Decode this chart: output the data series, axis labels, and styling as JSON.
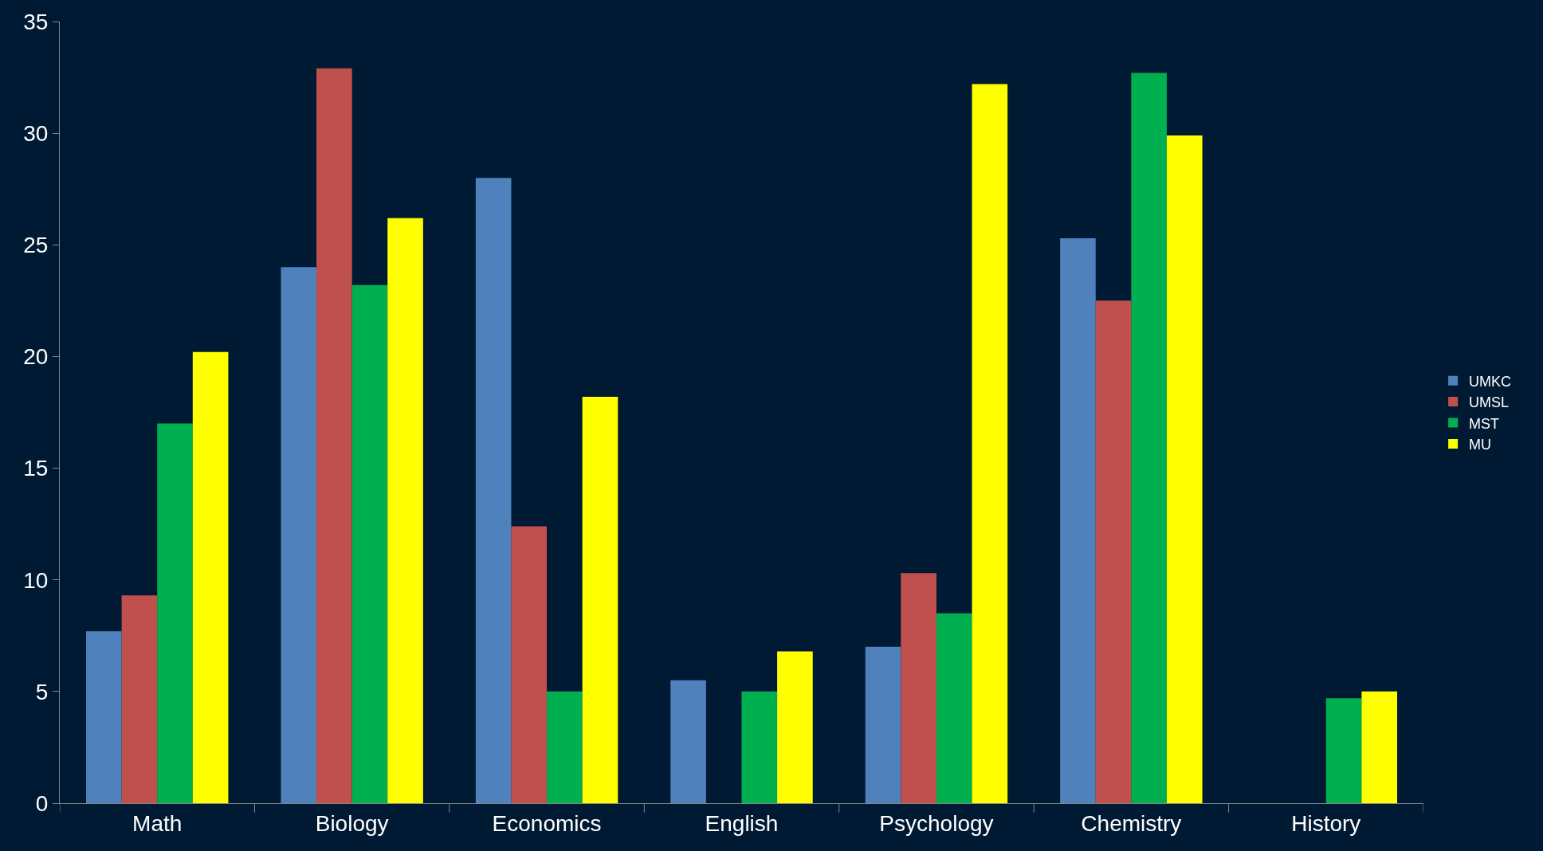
{
  "chart_data": {
    "type": "bar",
    "categories": [
      "Math",
      "Biology",
      "Economics",
      "English",
      "Psychology",
      "Chemistry",
      "History"
    ],
    "series": [
      {
        "name": "UMKC",
        "color": "#4f81bd",
        "values": [
          7.7,
          24,
          28,
          5.5,
          7,
          25.3,
          null
        ]
      },
      {
        "name": "UMSL",
        "color": "#c0504d",
        "values": [
          9.3,
          32.9,
          12.4,
          null,
          10.3,
          22.5,
          null
        ]
      },
      {
        "name": "MST",
        "color": "#00b050",
        "values": [
          17,
          23.2,
          5,
          5,
          8.5,
          32.7,
          4.7
        ]
      },
      {
        "name": "MU",
        "color": "#ffff00",
        "values": [
          20.2,
          26.2,
          18.2,
          6.8,
          32.2,
          29.9,
          5
        ]
      }
    ],
    "ylim": [
      0,
      35
    ],
    "yticks": [
      0,
      5,
      10,
      15,
      20,
      25,
      30,
      35
    ],
    "grid": false,
    "legend": "right"
  }
}
